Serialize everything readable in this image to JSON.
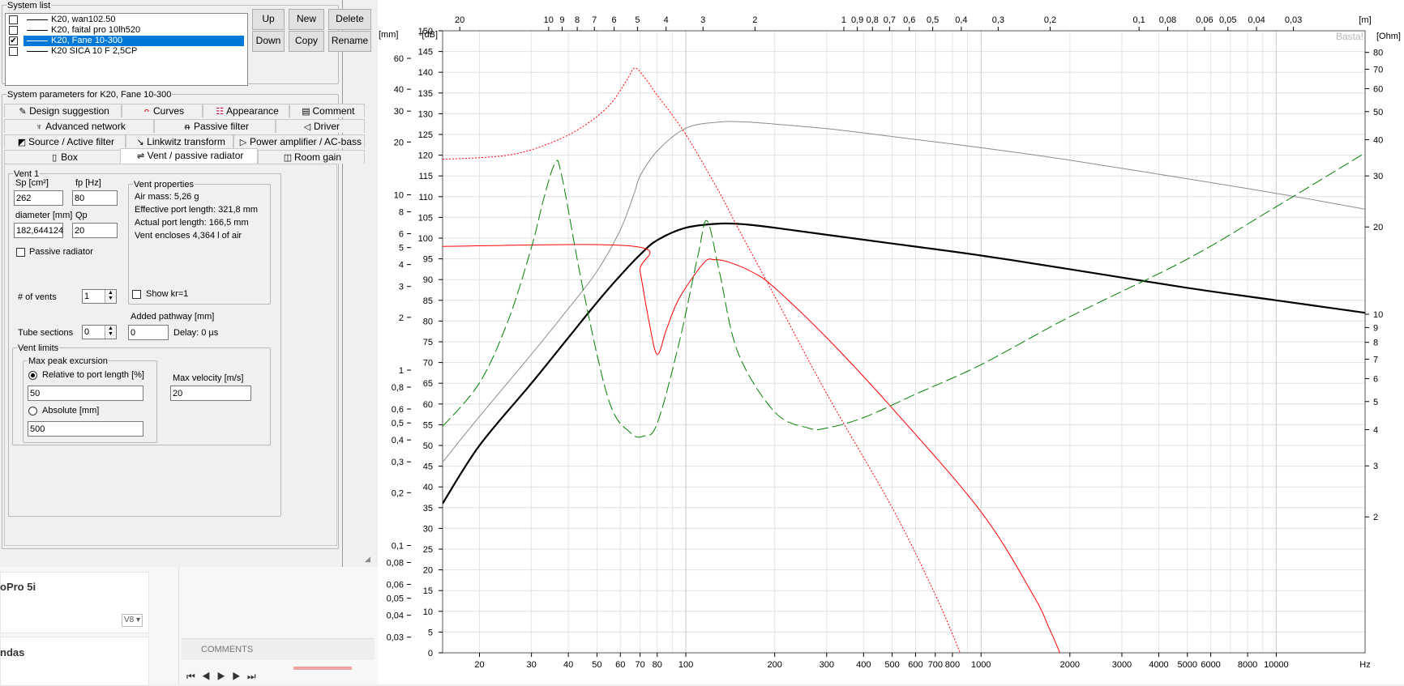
{
  "system_list": {
    "title": "System list",
    "items": [
      {
        "label": "K20, wan102.50",
        "checked": false,
        "selected": false
      },
      {
        "label": "K20, faital pro 10lh520",
        "checked": false,
        "selected": false
      },
      {
        "label": "K20, Fane 10-300",
        "checked": true,
        "selected": true
      },
      {
        "label": "K20 SICA 10 F 2,5CP",
        "checked": false,
        "selected": false
      }
    ],
    "buttons": {
      "up": "Up",
      "new": "New",
      "delete": "Delete",
      "down": "Down",
      "copy": "Copy",
      "rename": "Rename"
    }
  },
  "params": {
    "title": "System parameters for K20, Fane 10-300",
    "tabs_row1": [
      {
        "label": "Design suggestion",
        "icon": "pencil-icon"
      },
      {
        "label": "Curves",
        "icon": "curves-icon"
      },
      {
        "label": "Appearance",
        "icon": "appearance-icon"
      },
      {
        "label": "Comment",
        "icon": "comment-icon"
      }
    ],
    "tabs_row2": [
      {
        "label": "Advanced network",
        "icon": "network-icon"
      },
      {
        "label": "Passive filter",
        "icon": "filter-icon"
      },
      {
        "label": "Driver",
        "icon": "speaker-icon"
      }
    ],
    "tabs_row3": [
      {
        "label": "Source / Active filter",
        "icon": "source-icon"
      },
      {
        "label": "Linkwitz transform",
        "icon": "linkwitz-icon"
      },
      {
        "label": "Power amplifier / AC-bass",
        "icon": "amplifier-icon"
      }
    ],
    "tabs_row4": [
      {
        "label": "Box",
        "icon": "box-icon"
      },
      {
        "label": "Vent / passive radiator",
        "icon": "vent-icon",
        "selected": true
      },
      {
        "label": "Room gain",
        "icon": "room-icon"
      }
    ]
  },
  "vent": {
    "group_title": "Vent 1",
    "sp_label": "Sp [cm²]",
    "sp_value": "262",
    "fp_label": "fp [Hz]",
    "fp_value": "80",
    "diameter_label": "diameter [mm]",
    "diameter_value": "182,644124",
    "qp_label": "Qp",
    "qp_value": "20",
    "props_title": "Vent properties",
    "props": [
      "Air mass: 5,26 g",
      "Effective port length: 321,8 mm",
      "Actual port length: 166,5 mm",
      "Vent encloses 4,364 l of air"
    ],
    "passive_radiator_label": "Passive radiator",
    "num_vents_label": "# of vents",
    "num_vents_value": "1",
    "show_kr_label": "Show kr=1",
    "added_pathway_label": "Added pathway [mm]",
    "tube_sections_label": "Tube sections",
    "tube_sections_value": "0",
    "added_pathway_value": "0",
    "delay_label": "Delay: 0 µs",
    "limits_title": "Vent limits",
    "max_peak_title": "Max peak excursion",
    "relative_label": "Relative to port length [%]",
    "relative_value": "50",
    "absolute_label": "Absolute [mm]",
    "absolute_value": "500",
    "max_velocity_label": "Max velocity [m/s]",
    "max_velocity_value": "20"
  },
  "background_app": {
    "item1": "oPro 5i",
    "item2": "ndas",
    "badge": "V8 ▾",
    "comments": "COMMENTS"
  },
  "chart_data": {
    "type": "line",
    "watermark": "Basta!",
    "x_unit": "Hz",
    "x_ticks": [
      "20",
      "30",
      "40",
      "50",
      "60",
      "70",
      "80",
      "100",
      "200",
      "300",
      "400",
      "500",
      "600",
      "700",
      "800",
      "1000",
      "2000",
      "3000",
      "4000",
      "5000",
      "6000",
      "8000",
      "10000"
    ],
    "top_ticks_unit": "[m]",
    "top_ticks": [
      "30",
      "20",
      "10",
      "9",
      "8",
      "7",
      "6",
      "5",
      "4",
      "3",
      "2",
      "1",
      "0,9",
      "0,8",
      "0,7",
      "0,6",
      "0,5",
      "0,4",
      "0,3",
      "0,2",
      "0,1",
      "0,08",
      "0,06",
      "0,05",
      "0,04",
      "0,03"
    ],
    "left_db_unit": "-[dB]",
    "db_ticks": [
      "150",
      "145",
      "140",
      "135",
      "130",
      "125",
      "120",
      "115",
      "110",
      "105",
      "100",
      "95",
      "90",
      "85",
      "80",
      "75",
      "70",
      "65",
      "60",
      "55",
      "50",
      "45",
      "40",
      "35",
      "30",
      "25",
      "20",
      "15",
      "10",
      "5",
      "0"
    ],
    "mm_unit": "[mm]",
    "mm_ticks": [
      "60",
      "40",
      "30",
      "20",
      "10",
      "8",
      "6",
      "5",
      "4",
      "3",
      "2",
      "1",
      "0,8",
      "0,6",
      "0,5",
      "0,4",
      "0,3",
      "0,2",
      "0,1",
      "0,08",
      "0,06",
      "0,05",
      "0,04",
      "0,03"
    ],
    "ohm_unit": "[Ohm]",
    "ohm_ticks": [
      "80",
      "70",
      "60",
      "50",
      "40",
      "30",
      "20",
      "10",
      "9",
      "8",
      "7",
      "6",
      "5",
      "4",
      "3",
      "2"
    ],
    "xlim": [
      15,
      20000
    ],
    "ylim_db": [
      0,
      150
    ],
    "series": [
      {
        "color": "#000000",
        "style": "solid",
        "width": 2.2,
        "axis": "db",
        "points": [
          [
            15,
            36
          ],
          [
            20,
            50
          ],
          [
            30,
            65
          ],
          [
            40,
            76
          ],
          [
            50,
            84.5
          ],
          [
            60,
            91
          ],
          [
            70,
            96
          ],
          [
            80,
            99.5
          ],
          [
            100,
            102.5
          ],
          [
            130,
            103.5
          ],
          [
            160,
            103.3
          ],
          [
            200,
            102.5
          ],
          [
            300,
            100.8
          ],
          [
            500,
            98.7
          ],
          [
            1000,
            95.8
          ],
          [
            2000,
            92.5
          ],
          [
            5000,
            88
          ],
          [
            10000,
            85
          ],
          [
            20000,
            82
          ]
        ]
      },
      {
        "color": "#8c8c8c",
        "style": "solid",
        "width": 1,
        "axis": "db",
        "points": [
          [
            15,
            46
          ],
          [
            20,
            57
          ],
          [
            30,
            72
          ],
          [
            40,
            83
          ],
          [
            50,
            92
          ],
          [
            60,
            102
          ],
          [
            67,
            111
          ],
          [
            70,
            115
          ],
          [
            80,
            121
          ],
          [
            100,
            126.5
          ],
          [
            130,
            128
          ],
          [
            160,
            128
          ],
          [
            200,
            127.5
          ],
          [
            300,
            126.4
          ],
          [
            500,
            124.5
          ],
          [
            1000,
            121.8
          ],
          [
            2000,
            118.8
          ],
          [
            5000,
            114.3
          ],
          [
            10000,
            110.8
          ],
          [
            20000,
            107
          ]
        ]
      },
      {
        "color": "#ff0000",
        "style": "solid",
        "width": 1,
        "axis": "db",
        "points": [
          [
            15,
            98
          ],
          [
            67,
            98
          ],
          [
            70,
            92
          ],
          [
            75,
            80
          ],
          [
            80,
            72
          ],
          [
            86,
            78
          ],
          [
            95,
            85.5
          ],
          [
            115,
            94
          ],
          [
            125,
            94.8
          ],
          [
            140,
            94.2
          ],
          [
            170,
            91.6
          ],
          [
            200,
            88
          ],
          [
            300,
            76
          ],
          [
            500,
            59
          ],
          [
            1000,
            34
          ],
          [
            1500,
            14
          ],
          [
            1700,
            6
          ],
          [
            1850,
            0
          ]
        ]
      },
      {
        "color": "#ff0000",
        "style": "dotted",
        "width": 1,
        "axis": "db",
        "points": [
          [
            15,
            119
          ],
          [
            25,
            120
          ],
          [
            35,
            123
          ],
          [
            45,
            127
          ],
          [
            55,
            132
          ],
          [
            63,
            138
          ],
          [
            67,
            141
          ],
          [
            72,
            139
          ],
          [
            80,
            134.5
          ],
          [
            100,
            125
          ],
          [
            130,
            111
          ],
          [
            150,
            102.5
          ],
          [
            200,
            86
          ],
          [
            300,
            62.5
          ],
          [
            500,
            35
          ],
          [
            700,
            14
          ],
          [
            850,
            0
          ]
        ]
      },
      {
        "color": "#008000",
        "style": "dashed",
        "width": 1,
        "axis": "ohm",
        "points": [
          [
            15,
            4.1
          ],
          [
            20,
            5.8
          ],
          [
            25,
            9.5
          ],
          [
            30,
            17
          ],
          [
            33,
            25
          ],
          [
            36,
            33
          ],
          [
            38,
            30
          ],
          [
            45,
            12
          ],
          [
            55,
            5
          ],
          [
            65,
            3.9
          ],
          [
            72,
            3.8
          ],
          [
            80,
            4.2
          ],
          [
            95,
            8
          ],
          [
            110,
            16
          ],
          [
            118,
            21
          ],
          [
            130,
            14
          ],
          [
            150,
            7.4
          ],
          [
            200,
            4.6
          ],
          [
            260,
            4.05
          ],
          [
            300,
            4.05
          ],
          [
            400,
            4.4
          ],
          [
            600,
            5.3
          ],
          [
            1000,
            6.7
          ],
          [
            2000,
            9.8
          ],
          [
            5000,
            15.5
          ],
          [
            10000,
            23.5
          ],
          [
            20000,
            36
          ]
        ]
      }
    ]
  }
}
